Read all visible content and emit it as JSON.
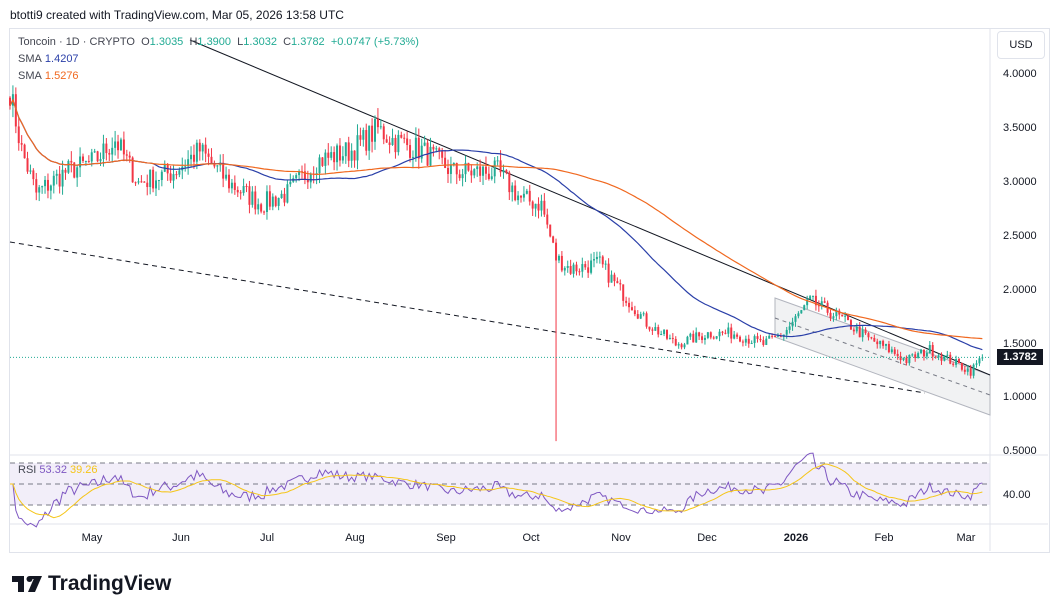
{
  "credit": "btotti9 created with TradingView.com, Mar 05, 2026 13:58 UTC",
  "legend": {
    "symbol": "Toncoin · 1D · CRYPTO",
    "o_label": "O",
    "o": "1.3035",
    "h_label": "H",
    "h": "1.3900",
    "l_label": "L",
    "l": "1.3032",
    "c_label": "C",
    "c": "1.3782",
    "change": "+0.0747 (+5.73%)",
    "sma1_label": "SMA",
    "sma1": "1.4207",
    "sma2_label": "SMA",
    "sma2": "1.5276",
    "rsi_label": "RSI",
    "rsi": "53.32",
    "rsi_ma": "39.26"
  },
  "currency": "USD",
  "price_axis": [
    "4.0000",
    "3.5000",
    "3.0000",
    "2.5000",
    "2.0000",
    "1.5000",
    "1.0000",
    "0.5000"
  ],
  "last_price": "1.3782",
  "rsi_axis": "40.00",
  "months": [
    "May",
    "Jun",
    "Jul",
    "Aug",
    "Sep",
    "Oct",
    "Nov",
    "Dec",
    "2026",
    "Feb",
    "Mar"
  ],
  "brand": "TradingView",
  "colors": {
    "up": "#22ab94",
    "down": "#f23645",
    "sma1": "#2a3fa8",
    "sma2": "#f0681f",
    "rsi": "#7e57c2",
    "rsi_ma": "#f5c518"
  },
  "chart_data": {
    "type": "candlestick",
    "ylim": [
      0.5,
      4.0
    ],
    "price_path": [
      [
        "2025-04-06",
        3.85
      ],
      [
        "2025-04-10",
        3.3
      ],
      [
        "2025-04-15",
        2.9
      ],
      [
        "2025-04-25",
        3.1
      ],
      [
        "2025-05-05",
        3.2
      ],
      [
        "2025-05-12",
        3.4
      ],
      [
        "2025-05-20",
        3.0
      ],
      [
        "2025-06-01",
        3.1
      ],
      [
        "2025-06-10",
        3.3
      ],
      [
        "2025-06-20",
        3.0
      ],
      [
        "2025-07-01",
        2.8
      ],
      [
        "2025-07-10",
        2.9
      ],
      [
        "2025-07-20",
        3.2
      ],
      [
        "2025-08-01",
        3.3
      ],
      [
        "2025-08-10",
        3.5
      ],
      [
        "2025-08-15",
        3.4
      ],
      [
        "2025-08-25",
        3.3
      ],
      [
        "2025-09-05",
        3.1
      ],
      [
        "2025-09-20",
        3.1
      ],
      [
        "2025-09-28",
        2.85
      ],
      [
        "2025-10-05",
        2.8
      ],
      [
        "2025-10-10",
        2.3
      ],
      [
        "2025-10-15",
        2.2
      ],
      [
        "2025-10-25",
        2.25
      ],
      [
        "2025-11-01",
        2.0
      ],
      [
        "2025-11-10",
        1.7
      ],
      [
        "2025-11-20",
        1.5
      ],
      [
        "2025-12-01",
        1.6
      ],
      [
        "2025-12-10",
        1.6
      ],
      [
        "2025-12-20",
        1.5
      ],
      [
        "2025-12-27",
        1.6
      ],
      [
        "2026-01-05",
        1.9
      ],
      [
        "2026-01-15",
        1.75
      ],
      [
        "2026-01-25",
        1.55
      ],
      [
        "2026-02-01",
        1.45
      ],
      [
        "2026-02-07",
        1.35
      ],
      [
        "2026-02-15",
        1.45
      ],
      [
        "2026-02-22",
        1.35
      ],
      [
        "2026-03-01",
        1.25
      ],
      [
        "2026-03-05",
        1.378
      ]
    ],
    "flash_crash_low": [
      "2025-10-10",
      0.6
    ]
  }
}
